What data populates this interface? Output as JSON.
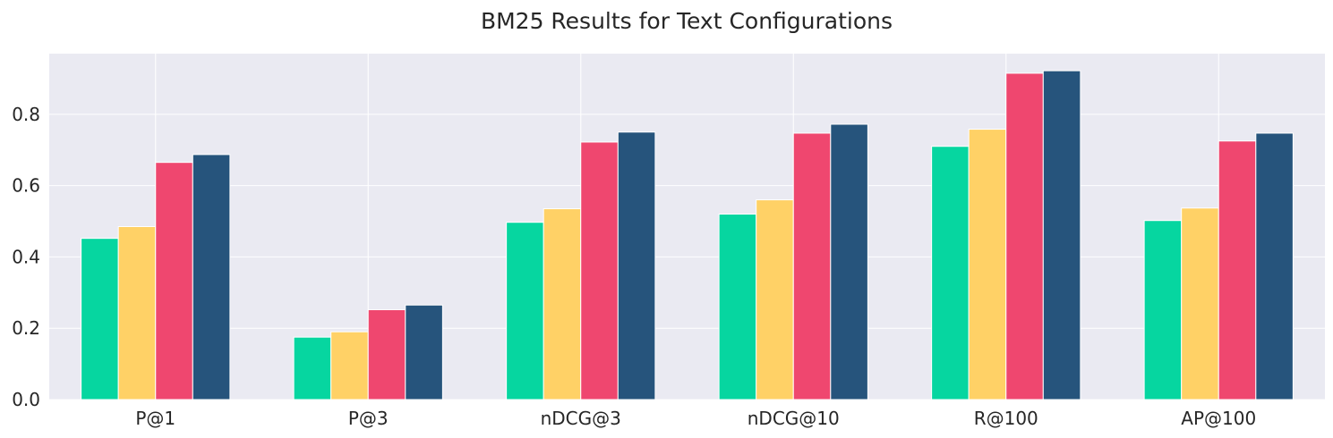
{
  "chart_data": {
    "type": "bar",
    "title": "BM25 Results for Text Configurations",
    "xlabel": "",
    "ylabel": "",
    "categories": [
      "P@1",
      "P@3",
      "nDCG@3",
      "nDCG@10",
      "R@100",
      "AP@100"
    ],
    "ylim": [
      0,
      0.97
    ],
    "yticks": [
      0.0,
      0.2,
      0.4,
      0.6,
      0.8
    ],
    "ytick_labels": [
      "0.0",
      "0.2",
      "0.4",
      "0.6",
      "0.8"
    ],
    "grid": true,
    "legend": "none",
    "series": [
      {
        "color": "#06d6a0",
        "values": [
          0.452,
          0.175,
          0.497,
          0.52,
          0.71,
          0.502
        ]
      },
      {
        "color": "#ffd166",
        "values": [
          0.485,
          0.19,
          0.535,
          0.56,
          0.758,
          0.537
        ]
      },
      {
        "color": "#ef476f",
        "values": [
          0.665,
          0.252,
          0.722,
          0.747,
          0.915,
          0.725
        ]
      },
      {
        "color": "#26547c",
        "values": [
          0.687,
          0.265,
          0.75,
          0.772,
          0.922,
          0.747
        ]
      }
    ],
    "colors": {
      "background": "#eaeaf2",
      "grid": "#ffffff",
      "text": "#262626"
    }
  }
}
